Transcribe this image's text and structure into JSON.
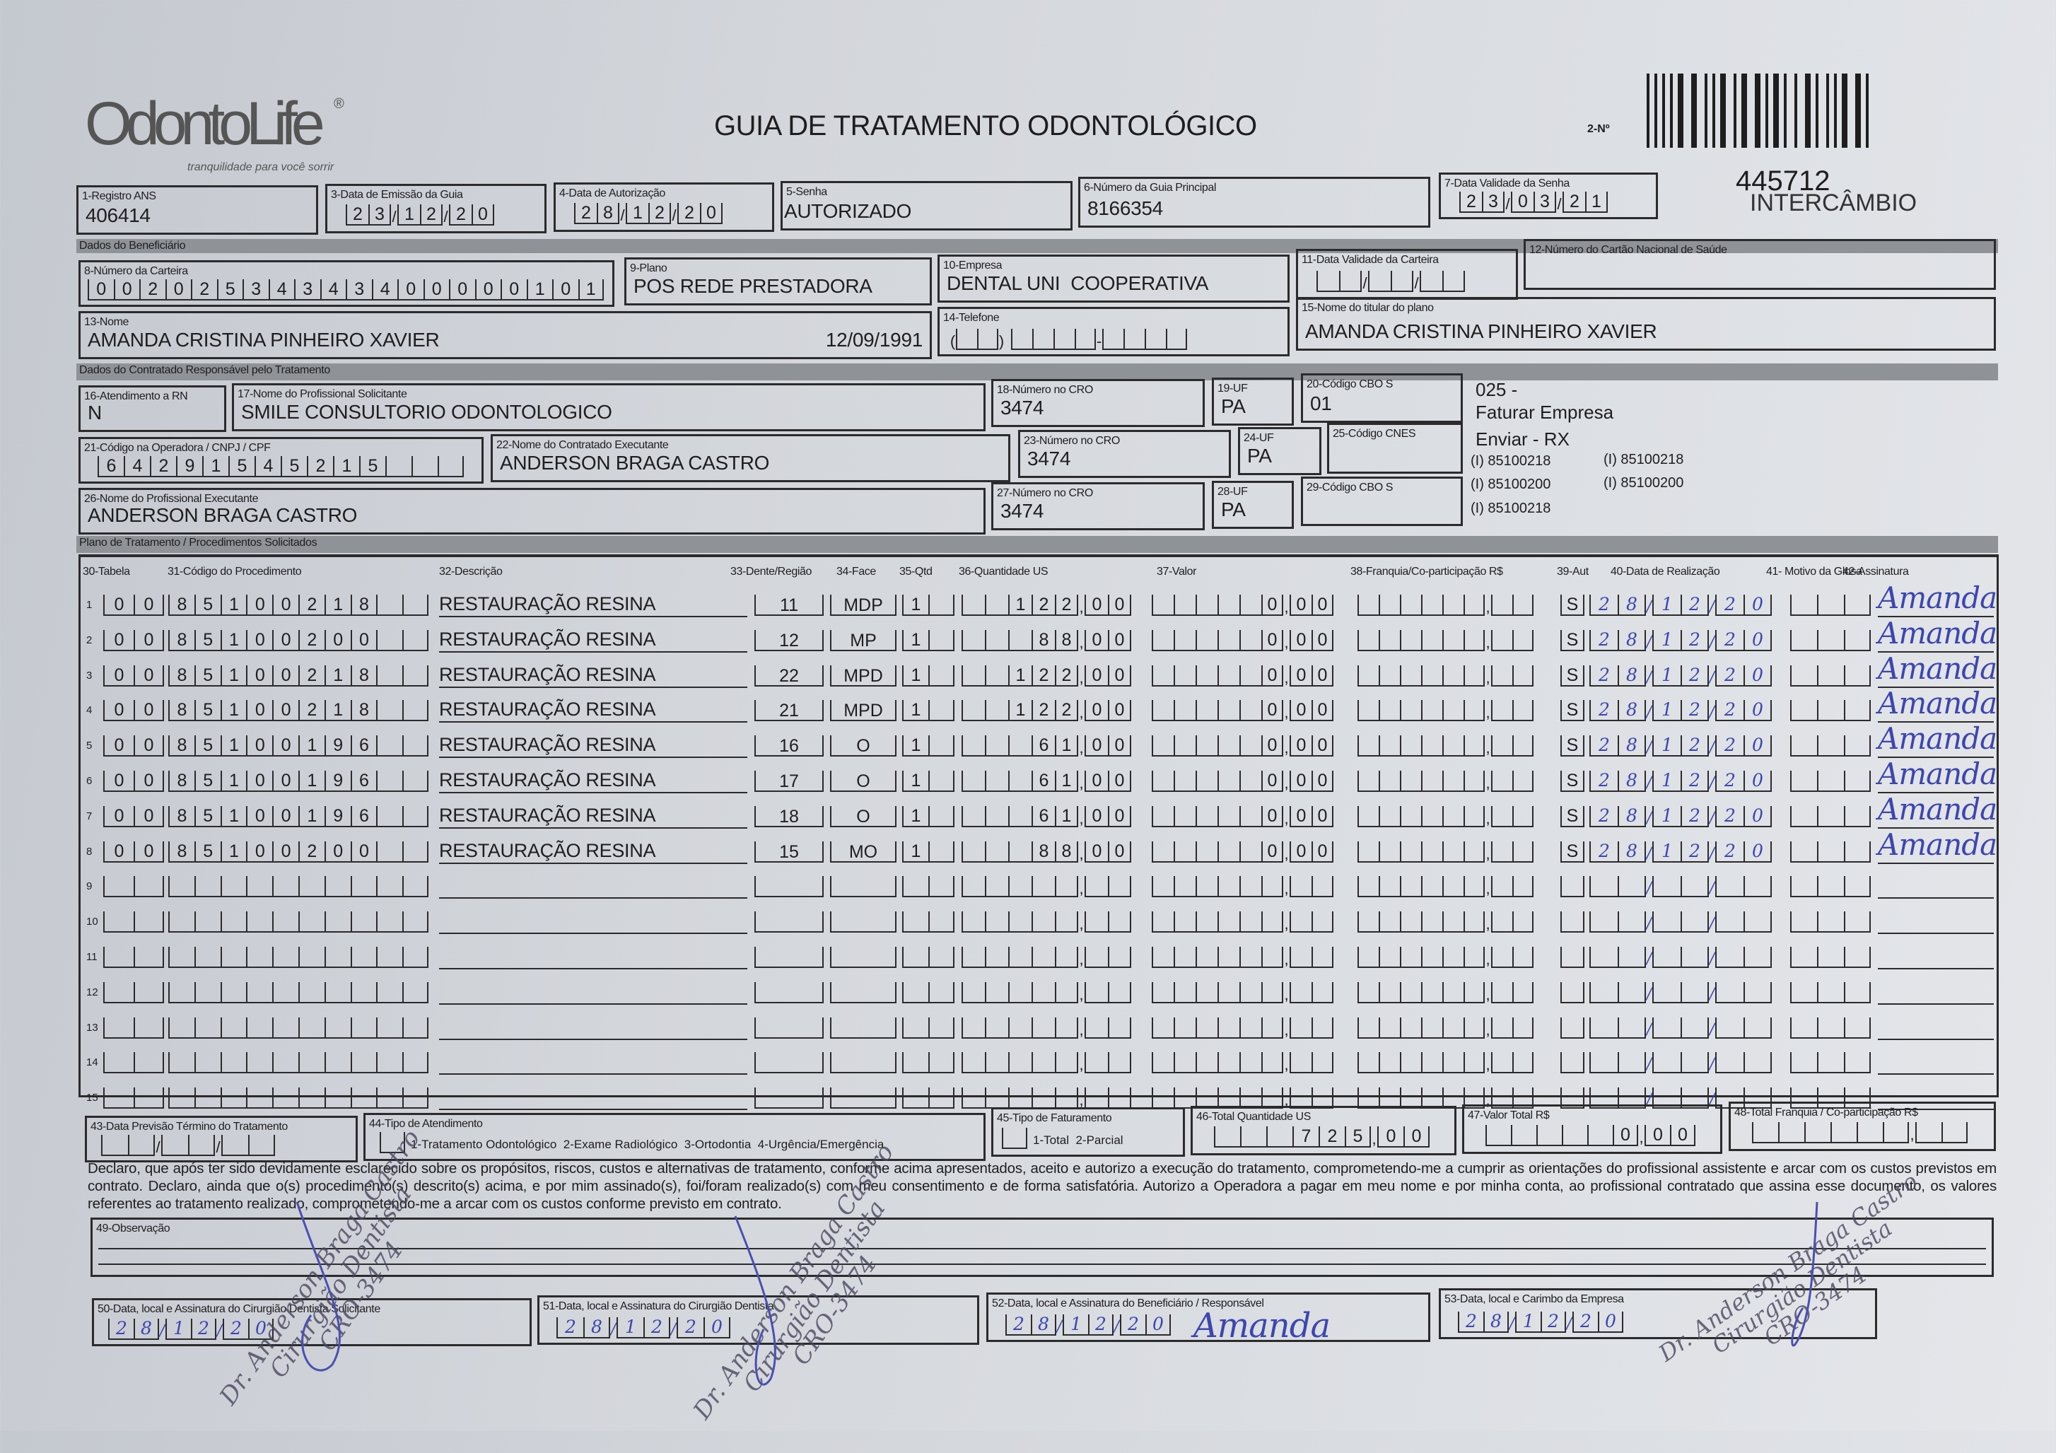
{
  "header": {
    "logo_text": "OdontoLife",
    "logo_mark": "®",
    "logo_tagline": "tranquilidade para você sorrir",
    "title": "GUIA DE TRATAMENTO ODONTOLÓGICO",
    "guia_number_label": "2-Nº",
    "ref_number": "445712",
    "ref_label": "INTERCÂMBIO"
  },
  "sections": {
    "beneficiario": "Dados do Beneficiário",
    "contratado": "Dados do Contratado Responsável pelo Tratamento",
    "plano": "Plano de Tratamento / Procedimentos Solicitados"
  },
  "fields": {
    "f1": {
      "label": "1-Registro ANS",
      "value": "406414"
    },
    "f3": {
      "label": "3-Data de Emissão da Guia",
      "value": "23/12/20"
    },
    "f4": {
      "label": "4-Data de Autorização",
      "value": "28/12/20"
    },
    "f5": {
      "label": "5-Senha",
      "value": "AUTORIZADO"
    },
    "f6": {
      "label": "6-Número da Guia Principal",
      "value": "8166354"
    },
    "f7": {
      "label": "7-Data Validade da Senha",
      "value": "23/03/21"
    },
    "f8": {
      "label": "8-Número da Carteira",
      "value": "00202534343400000101"
    },
    "f9": {
      "label": "9-Plano",
      "value": "POS REDE PRESTADORA"
    },
    "f10": {
      "label": "10-Empresa",
      "value": "DENTAL UNI  COOPERATIVA"
    },
    "f11": {
      "label": "11-Data Validade da Carteira",
      "value": ""
    },
    "f12": {
      "label": "12-Número do Cartão Nacional de Saúde",
      "value": ""
    },
    "f13": {
      "label": "13-Nome",
      "value": "AMANDA CRISTINA PINHEIRO XAVIER",
      "birth": "12/09/1991"
    },
    "f14": {
      "label": "14-Telefone",
      "value": ""
    },
    "f15": {
      "label": "15-Nome do titular do plano",
      "value": "AMANDA CRISTINA PINHEIRO XAVIER"
    },
    "f16": {
      "label": "16-Atendimento a RN",
      "value": "N"
    },
    "f17": {
      "label": "17-Nome do Profissional Solicitante",
      "value": "SMILE CONSULTORIO ODONTOLOGICO"
    },
    "f18": {
      "label": "18-Número no CRO",
      "value": "3474"
    },
    "f19": {
      "label": "19-UF",
      "value": "PA"
    },
    "f20": {
      "label": "20-Código CBO S",
      "value": "01"
    },
    "f21": {
      "label": "21-Código na Operadora / CNPJ / CPF",
      "value": "64291545215"
    },
    "f22": {
      "label": "22-Nome do Contratado Executante",
      "value": "ANDERSON BRAGA CASTRO"
    },
    "f23": {
      "label": "23-Número no CRO",
      "value": "3474"
    },
    "f24": {
      "label": "24-UF",
      "value": "PA"
    },
    "f25": {
      "label": "25-Código CNES",
      "value": ""
    },
    "f26": {
      "label": "26-Nome do Profissional Executante",
      "value": "ANDERSON BRAGA CASTRO"
    },
    "f27": {
      "label": "27-Número no CRO",
      "value": "3474"
    },
    "f28": {
      "label": "28-UF",
      "value": "PA"
    },
    "f29": {
      "label": "29-Código CBO S",
      "value": ""
    }
  },
  "side_notes": {
    "line1": "025 -",
    "line2": "Faturar Empresa",
    "line3": "Enviar - RX",
    "codes": [
      "(I) 85100218",
      "(I) 85100218",
      "(I) 85100200",
      "(I) 85100200",
      "(I) 85100218"
    ]
  },
  "table": {
    "columns": [
      "30-Tabela",
      "31-Código do Procedimento",
      "32-Descrição",
      "33-Dente/Região",
      "34-Face",
      "35-Qtd",
      "36-Quantidade US",
      "37-Valor",
      "38-Franquia/Co-participação R$",
      "39-Aut",
      "40-Data de Realização",
      "41- Motivo da Glosa",
      "42-Assinatura"
    ],
    "rows": [
      {
        "n": "1",
        "tabela": "00",
        "codigo": "85100218",
        "descricao": "RESTAURAÇÃO RESINA",
        "dente": "11",
        "face": "MDP",
        "qtd": "1",
        "qtd_us": "122,00",
        "valor": "0,00",
        "franquia": "",
        "aut": "S",
        "data": "28/12/20",
        "glosa": "",
        "assinatura": "Amanda"
      },
      {
        "n": "2",
        "tabela": "00",
        "codigo": "85100200",
        "descricao": "RESTAURAÇÃO RESINA",
        "dente": "12",
        "face": "MP",
        "qtd": "1",
        "qtd_us": "88,00",
        "valor": "0,00",
        "franquia": "",
        "aut": "S",
        "data": "28/12/20",
        "glosa": "",
        "assinatura": "Amanda"
      },
      {
        "n": "3",
        "tabela": "00",
        "codigo": "85100218",
        "descricao": "RESTAURAÇÃO RESINA",
        "dente": "22",
        "face": "MPD",
        "qtd": "1",
        "qtd_us": "122,00",
        "valor": "0,00",
        "franquia": "",
        "aut": "S",
        "data": "28/12/20",
        "glosa": "",
        "assinatura": "Amanda"
      },
      {
        "n": "4",
        "tabela": "00",
        "codigo": "85100218",
        "descricao": "RESTAURAÇÃO RESINA",
        "dente": "21",
        "face": "MPD",
        "qtd": "1",
        "qtd_us": "122,00",
        "valor": "0,00",
        "franquia": "",
        "aut": "S",
        "data": "28/12/20",
        "glosa": "",
        "assinatura": "Amanda"
      },
      {
        "n": "5",
        "tabela": "00",
        "codigo": "85100196",
        "descricao": "RESTAURAÇÃO RESINA",
        "dente": "16",
        "face": "O",
        "qtd": "1",
        "qtd_us": "61,00",
        "valor": "0,00",
        "franquia": "",
        "aut": "S",
        "data": "28/12/20",
        "glosa": "",
        "assinatura": "Amanda"
      },
      {
        "n": "6",
        "tabela": "00",
        "codigo": "85100196",
        "descricao": "RESTAURAÇÃO RESINA",
        "dente": "17",
        "face": "O",
        "qtd": "1",
        "qtd_us": "61,00",
        "valor": "0,00",
        "franquia": "",
        "aut": "S",
        "data": "28/12/20",
        "glosa": "",
        "assinatura": "Amanda"
      },
      {
        "n": "7",
        "tabela": "00",
        "codigo": "85100196",
        "descricao": "RESTAURAÇÃO RESINA",
        "dente": "18",
        "face": "O",
        "qtd": "1",
        "qtd_us": "61,00",
        "valor": "0,00",
        "franquia": "",
        "aut": "S",
        "data": "28/12/20",
        "glosa": "",
        "assinatura": "Amanda"
      },
      {
        "n": "8",
        "tabela": "00",
        "codigo": "85100200",
        "descricao": "RESTAURAÇÃO RESINA",
        "dente": "15",
        "face": "MO",
        "qtd": "1",
        "qtd_us": "88,00",
        "valor": "0,00",
        "franquia": "",
        "aut": "S",
        "data": "28/12/20",
        "glosa": "",
        "assinatura": "Amanda"
      },
      {
        "n": "9"
      },
      {
        "n": "10"
      },
      {
        "n": "11"
      },
      {
        "n": "12"
      },
      {
        "n": "13"
      },
      {
        "n": "14"
      },
      {
        "n": "15"
      }
    ]
  },
  "footer": {
    "f43": {
      "label": "43-Data Previsão Término do Tratamento",
      "value": ""
    },
    "f44": {
      "label": "44-Tipo de Atendimento",
      "options": "1-Tratamento Odontológico  2-Exame Radiológico  3-Ortodontia  4-Urgência/Emergência",
      "value": ""
    },
    "f45": {
      "label": "45-Tipo de Faturamento",
      "options": "1-Total  2-Parcial",
      "value": ""
    },
    "f46": {
      "label": "46-Total Quantidade US",
      "value": "725,00"
    },
    "f47": {
      "label": "47-Valor Total R$",
      "value": "0,00"
    },
    "f48": {
      "label": "48-Total Franquia / Co-participação R$",
      "value": ""
    },
    "declaration": "Declaro, que após ter sido devidamente esclarecido sobre os propósitos, riscos, custos e alternativas de tratamento, conforme acima apresentados, aceito e autorizo a execução do tratamento, comprometendo-me a cumprir as orientações do profissional assistente e arcar com os custos previstos em contrato. Declaro, ainda que o(s) procedimento(s) descrito(s) acima, e por mim assinado(s), foi/foram realizado(s) com meu consentimento e de forma satisfatória. Autorizo a Operadora a pagar em meu nome e por minha conta, ao profissional contratado que assina esse documento, os valores referentes ao tratamento realizado, comprometendo-me a arcar com os custos conforme previsto em contrato.",
    "f49": {
      "label": "49-Observação",
      "value": ""
    },
    "f50": {
      "label": "50-Data, local e Assinatura do Cirurgião Dentista Solicitante",
      "date": "28/12/20"
    },
    "f51": {
      "label": "51-Data, local e Assinatura do Cirurgião Dentista",
      "date": "28/12/20"
    },
    "f52": {
      "label": "52-Data, local e Assinatura do Beneficiário / Responsável",
      "date": "28/12/20",
      "signature": "Amanda"
    },
    "f53": {
      "label": "53-Data, local e Carimbo da Empresa",
      "date": "28/12/20"
    }
  },
  "stamp": {
    "line1": "Dr. Anderson Braga Castro",
    "line2": "Cirurgião Dentista",
    "line3": "CRO-3474"
  },
  "colors": {
    "ink": "#1e1e1e",
    "pen": "#3d46ad",
    "section_bar": "#8f9296",
    "paper": "#d3d6db"
  }
}
